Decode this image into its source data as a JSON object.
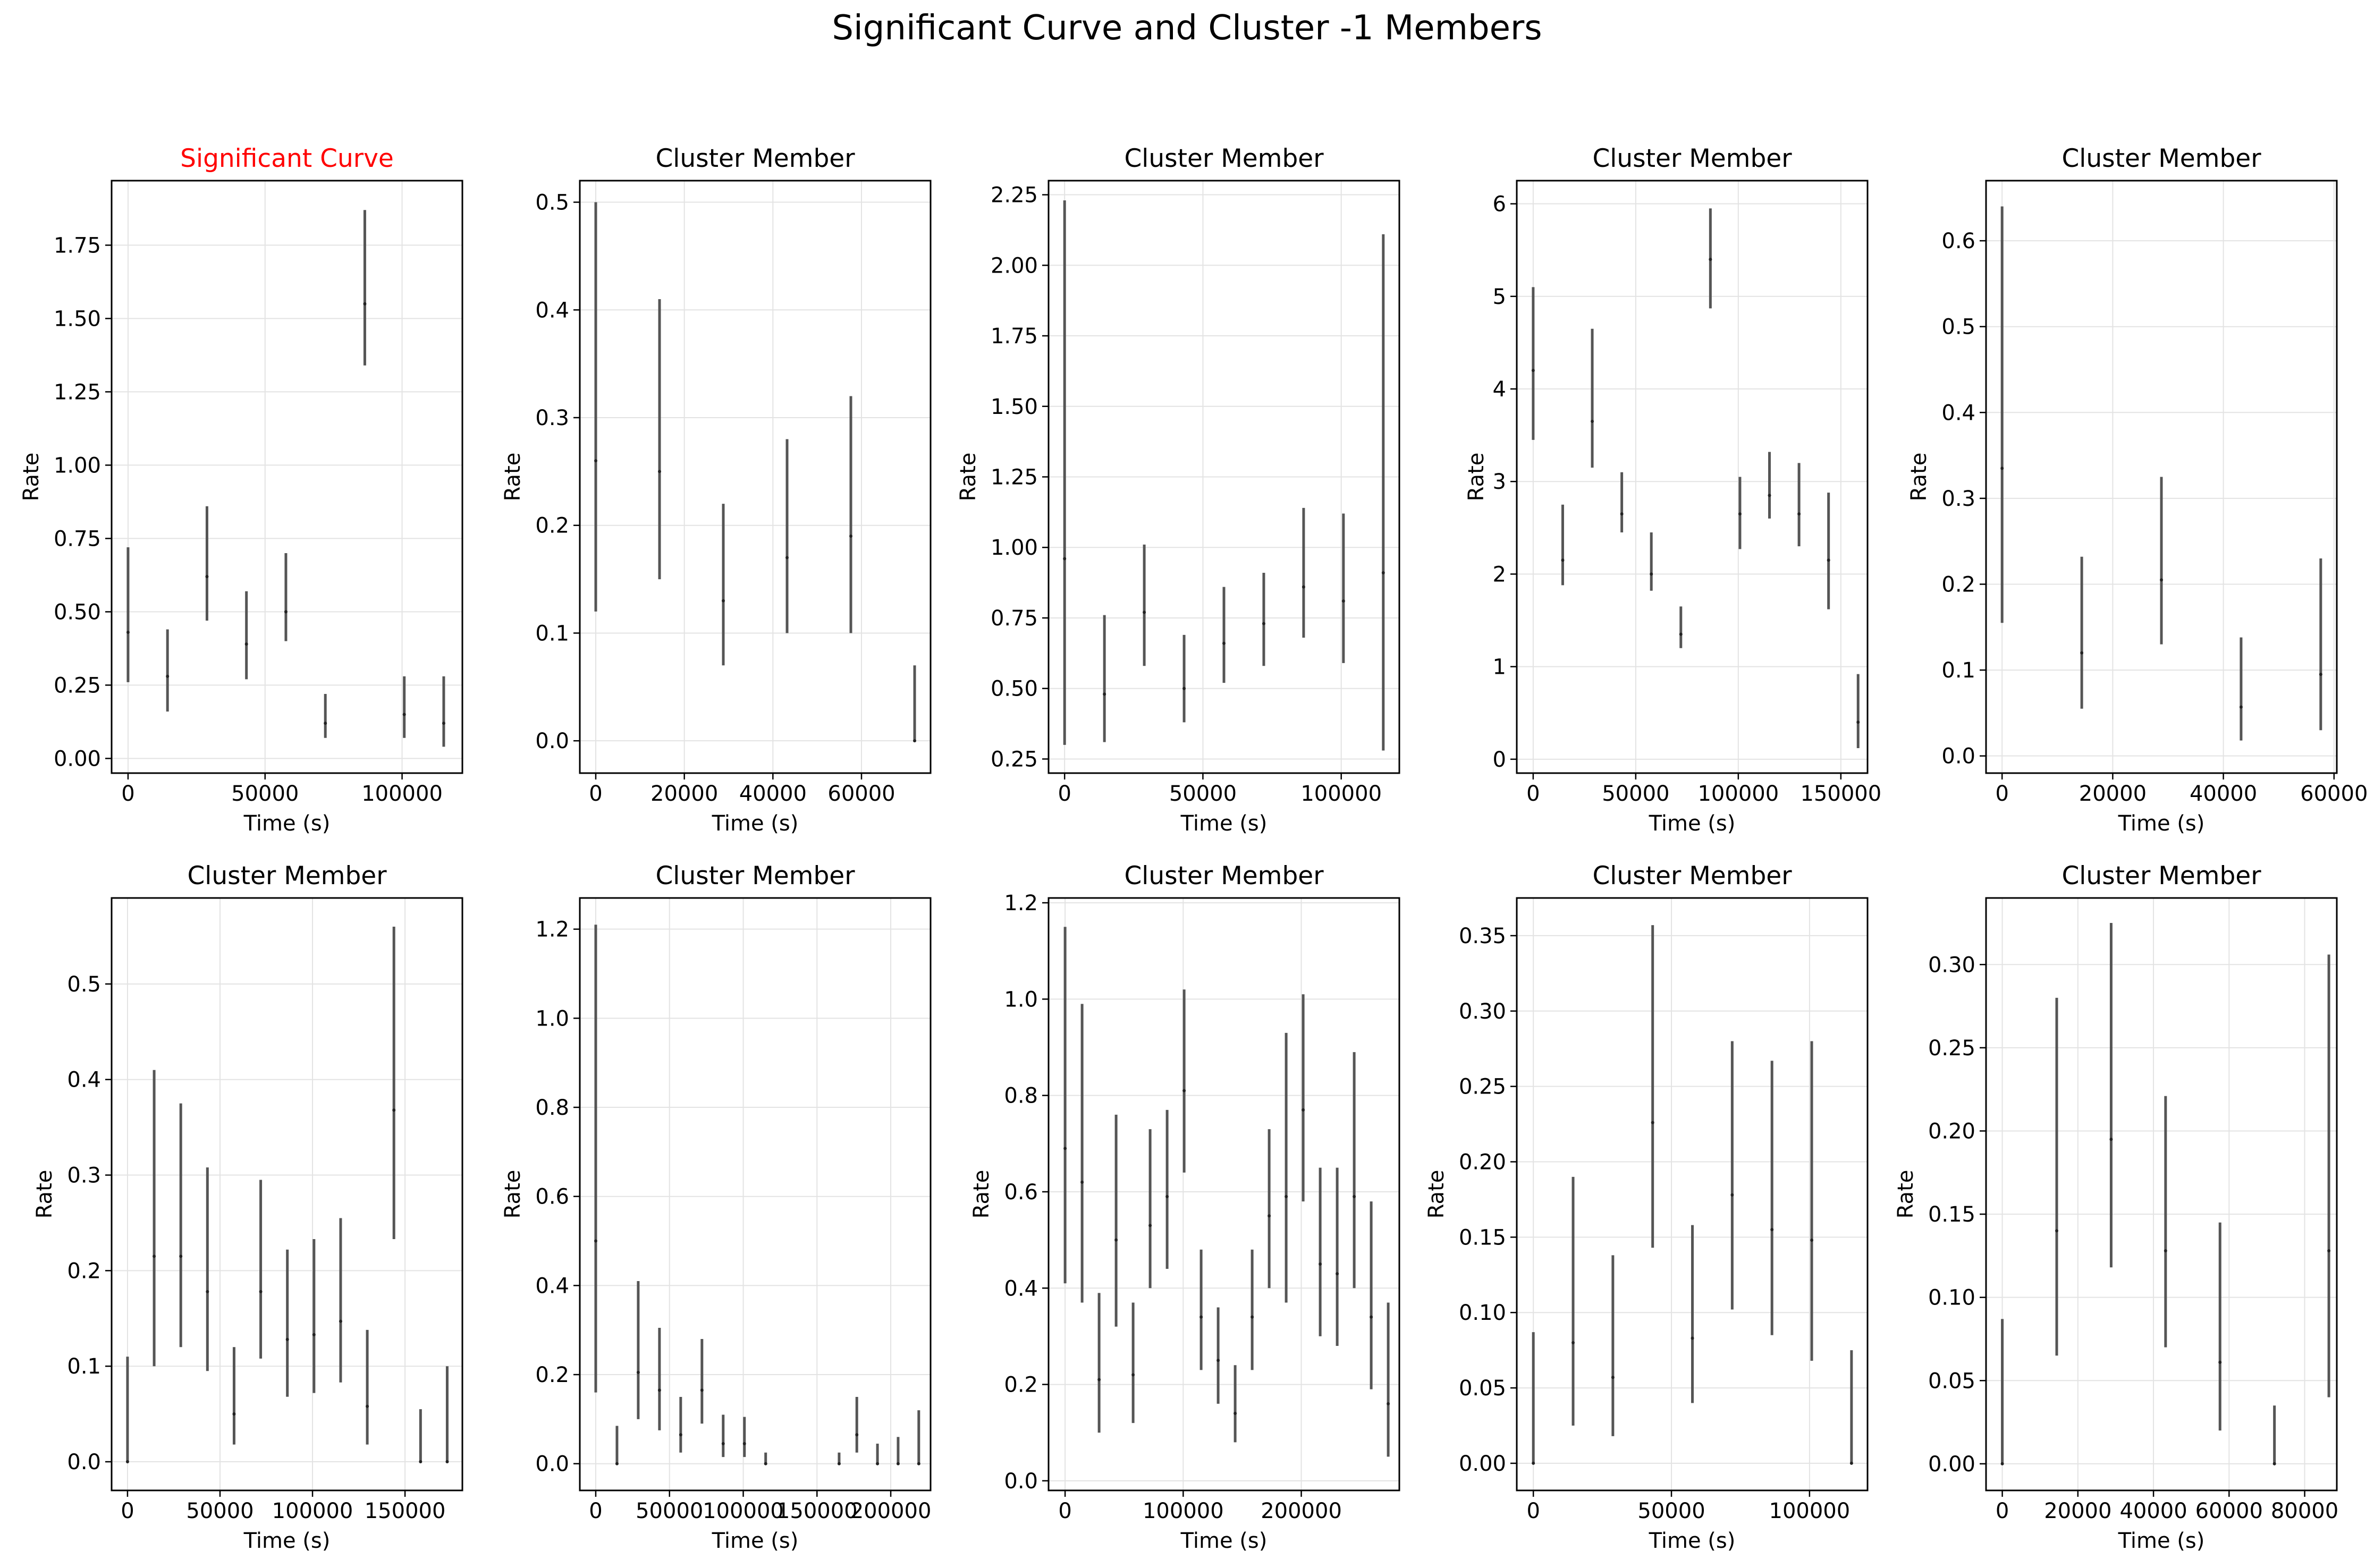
{
  "title": "Significant Curve and Cluster -1 Members",
  "colors": {
    "highlight_title": "#ff0000",
    "normal_title": "#000000",
    "errorbar": "#555555",
    "grid": "#e3e3e3"
  },
  "chart_data": [
    {
      "type": "scatter",
      "title": "Significant Curve",
      "title_color": "#ff0000",
      "xlabel": "Time (s)",
      "ylabel": "Rate",
      "xlim": [
        -6000,
        122000
      ],
      "ylim": [
        -0.05,
        1.97
      ],
      "xticks": [
        0,
        50000,
        100000
      ],
      "xtick_labels": [
        "0",
        "50000",
        "100000"
      ],
      "yticks": [
        0,
        0.25,
        0.5,
        0.75,
        1.0,
        1.25,
        1.5,
        1.75
      ],
      "ytick_labels": [
        "0.00",
        "0.25",
        "0.50",
        "0.75",
        "1.00",
        "1.25",
        "1.50",
        "1.75"
      ],
      "grid": true,
      "points": [
        {
          "x": 0,
          "y": 0.43,
          "lo": 0.26,
          "hi": 0.72
        },
        {
          "x": 14400,
          "y": 0.28,
          "lo": 0.16,
          "hi": 0.44
        },
        {
          "x": 28800,
          "y": 0.62,
          "lo": 0.47,
          "hi": 0.86
        },
        {
          "x": 43200,
          "y": 0.39,
          "lo": 0.27,
          "hi": 0.57
        },
        {
          "x": 57600,
          "y": 0.5,
          "lo": 0.4,
          "hi": 0.7
        },
        {
          "x": 72000,
          "y": 0.12,
          "lo": 0.07,
          "hi": 0.22
        },
        {
          "x": 86400,
          "y": 1.55,
          "lo": 1.34,
          "hi": 1.87
        },
        {
          "x": 100800,
          "y": 0.15,
          "lo": 0.07,
          "hi": 0.28
        },
        {
          "x": 115200,
          "y": 0.12,
          "lo": 0.04,
          "hi": 0.28
        }
      ]
    },
    {
      "type": "scatter",
      "title": "Cluster Member",
      "title_color": "#000000",
      "xlabel": "Time (s)",
      "ylabel": "Rate",
      "xlim": [
        -3600,
        75600
      ],
      "ylim": [
        -0.03,
        0.52
      ],
      "xticks": [
        0,
        20000,
        40000,
        60000
      ],
      "xtick_labels": [
        "0",
        "20000",
        "40000",
        "60000"
      ],
      "yticks": [
        0,
        0.1,
        0.2,
        0.3,
        0.4,
        0.5
      ],
      "ytick_labels": [
        "0.0",
        "0.1",
        "0.2",
        "0.3",
        "0.4",
        "0.5"
      ],
      "grid": true,
      "points": [
        {
          "x": 0,
          "y": 0.26,
          "lo": 0.12,
          "hi": 0.5
        },
        {
          "x": 14400,
          "y": 0.25,
          "lo": 0.15,
          "hi": 0.41
        },
        {
          "x": 28800,
          "y": 0.13,
          "lo": 0.07,
          "hi": 0.22
        },
        {
          "x": 43200,
          "y": 0.17,
          "lo": 0.1,
          "hi": 0.28
        },
        {
          "x": 57600,
          "y": 0.19,
          "lo": 0.1,
          "hi": 0.32
        },
        {
          "x": 72000,
          "y": 0.0,
          "lo": 0.0,
          "hi": 0.07
        }
      ]
    },
    {
      "type": "scatter",
      "title": "Cluster Member",
      "title_color": "#000000",
      "xlabel": "Time (s)",
      "ylabel": "Rate",
      "xlim": [
        -5800,
        121000
      ],
      "ylim": [
        0.2,
        2.3
      ],
      "xticks": [
        0,
        50000,
        100000
      ],
      "xtick_labels": [
        "0",
        "50000",
        "100000"
      ],
      "yticks": [
        0.25,
        0.5,
        0.75,
        1.0,
        1.25,
        1.5,
        1.75,
        2.0,
        2.25
      ],
      "ytick_labels": [
        "0.25",
        "0.50",
        "0.75",
        "1.00",
        "1.25",
        "1.50",
        "1.75",
        "2.00",
        "2.25"
      ],
      "grid": true,
      "points": [
        {
          "x": 0,
          "y": 0.96,
          "lo": 0.3,
          "hi": 2.23
        },
        {
          "x": 14400,
          "y": 0.48,
          "lo": 0.31,
          "hi": 0.76
        },
        {
          "x": 28800,
          "y": 0.77,
          "lo": 0.58,
          "hi": 1.01
        },
        {
          "x": 43200,
          "y": 0.5,
          "lo": 0.38,
          "hi": 0.69
        },
        {
          "x": 57600,
          "y": 0.66,
          "lo": 0.52,
          "hi": 0.86
        },
        {
          "x": 72000,
          "y": 0.73,
          "lo": 0.58,
          "hi": 0.91
        },
        {
          "x": 86400,
          "y": 0.86,
          "lo": 0.68,
          "hi": 1.14
        },
        {
          "x": 100800,
          "y": 0.81,
          "lo": 0.59,
          "hi": 1.12
        },
        {
          "x": 115200,
          "y": 0.91,
          "lo": 0.28,
          "hi": 2.11
        }
      ]
    },
    {
      "type": "scatter",
      "title": "Cluster Member",
      "title_color": "#000000",
      "xlabel": "Time (s)",
      "ylabel": "Rate",
      "xlim": [
        -8000,
        163000
      ],
      "ylim": [
        -0.15,
        6.25
      ],
      "xticks": [
        0,
        50000,
        100000,
        150000
      ],
      "xtick_labels": [
        "0",
        "50000",
        "100000",
        "150000"
      ],
      "yticks": [
        0,
        1,
        2,
        3,
        4,
        5,
        6
      ],
      "ytick_labels": [
        "0",
        "1",
        "2",
        "3",
        "4",
        "5",
        "6"
      ],
      "grid": true,
      "points": [
        {
          "x": 0,
          "y": 4.2,
          "lo": 3.45,
          "hi": 5.1
        },
        {
          "x": 14400,
          "y": 2.15,
          "lo": 1.88,
          "hi": 2.75
        },
        {
          "x": 28800,
          "y": 3.65,
          "lo": 3.15,
          "hi": 4.65
        },
        {
          "x": 43200,
          "y": 2.65,
          "lo": 2.45,
          "hi": 3.1
        },
        {
          "x": 57600,
          "y": 2.0,
          "lo": 1.82,
          "hi": 2.45
        },
        {
          "x": 72000,
          "y": 1.35,
          "lo": 1.2,
          "hi": 1.65
        },
        {
          "x": 86400,
          "y": 5.4,
          "lo": 4.87,
          "hi": 5.95
        },
        {
          "x": 100800,
          "y": 2.65,
          "lo": 2.27,
          "hi": 3.05
        },
        {
          "x": 115200,
          "y": 2.85,
          "lo": 2.6,
          "hi": 3.32
        },
        {
          "x": 129600,
          "y": 2.65,
          "lo": 2.3,
          "hi": 3.2
        },
        {
          "x": 144000,
          "y": 2.15,
          "lo": 1.62,
          "hi": 2.88
        },
        {
          "x": 158400,
          "y": 0.4,
          "lo": 0.12,
          "hi": 0.92
        }
      ]
    },
    {
      "type": "scatter",
      "title": "Cluster Member",
      "title_color": "#000000",
      "xlabel": "Time (s)",
      "ylabel": "Rate",
      "xlim": [
        -2900,
        60500
      ],
      "ylim": [
        -0.02,
        0.67
      ],
      "xticks": [
        0,
        20000,
        40000,
        60000
      ],
      "xtick_labels": [
        "0",
        "20000",
        "40000",
        "60000"
      ],
      "yticks": [
        0,
        0.1,
        0.2,
        0.3,
        0.4,
        0.5,
        0.6
      ],
      "ytick_labels": [
        "0.0",
        "0.1",
        "0.2",
        "0.3",
        "0.4",
        "0.5",
        "0.6"
      ],
      "grid": true,
      "points": [
        {
          "x": 0,
          "y": 0.335,
          "lo": 0.155,
          "hi": 0.64
        },
        {
          "x": 14400,
          "y": 0.12,
          "lo": 0.055,
          "hi": 0.232
        },
        {
          "x": 28800,
          "y": 0.205,
          "lo": 0.13,
          "hi": 0.325
        },
        {
          "x": 43200,
          "y": 0.057,
          "lo": 0.018,
          "hi": 0.138
        },
        {
          "x": 57600,
          "y": 0.095,
          "lo": 0.03,
          "hi": 0.23
        }
      ]
    },
    {
      "type": "scatter",
      "title": "Cluster Member",
      "title_color": "#000000",
      "xlabel": "Time (s)",
      "ylabel": "Rate",
      "xlim": [
        -8600,
        181000
      ],
      "ylim": [
        -0.03,
        0.59
      ],
      "xticks": [
        0,
        50000,
        100000,
        150000
      ],
      "xtick_labels": [
        "0",
        "50000",
        "100000",
        "150000"
      ],
      "yticks": [
        0,
        0.1,
        0.2,
        0.3,
        0.4,
        0.5
      ],
      "ytick_labels": [
        "0.0",
        "0.1",
        "0.2",
        "0.3",
        "0.4",
        "0.5"
      ],
      "grid": true,
      "points": [
        {
          "x": 0,
          "y": 0.0,
          "lo": 0.0,
          "hi": 0.11
        },
        {
          "x": 14400,
          "y": 0.215,
          "lo": 0.1,
          "hi": 0.41
        },
        {
          "x": 28800,
          "y": 0.215,
          "lo": 0.12,
          "hi": 0.375
        },
        {
          "x": 43200,
          "y": 0.178,
          "lo": 0.095,
          "hi": 0.308
        },
        {
          "x": 57600,
          "y": 0.05,
          "lo": 0.018,
          "hi": 0.12
        },
        {
          "x": 72000,
          "y": 0.178,
          "lo": 0.108,
          "hi": 0.295
        },
        {
          "x": 86400,
          "y": 0.128,
          "lo": 0.068,
          "hi": 0.222
        },
        {
          "x": 100800,
          "y": 0.133,
          "lo": 0.072,
          "hi": 0.233
        },
        {
          "x": 115200,
          "y": 0.147,
          "lo": 0.083,
          "hi": 0.255
        },
        {
          "x": 129600,
          "y": 0.058,
          "lo": 0.018,
          "hi": 0.138
        },
        {
          "x": 144000,
          "y": 0.368,
          "lo": 0.233,
          "hi": 0.56
        },
        {
          "x": 158400,
          "y": 0.0,
          "lo": 0.0,
          "hi": 0.055
        },
        {
          "x": 172800,
          "y": 0.0,
          "lo": 0.0,
          "hi": 0.1
        }
      ]
    },
    {
      "type": "scatter",
      "title": "Cluster Member",
      "title_color": "#000000",
      "xlabel": "Time (s)",
      "ylabel": "Rate",
      "xlim": [
        -10800,
        227000
      ],
      "ylim": [
        -0.06,
        1.27
      ],
      "xticks": [
        0,
        50000,
        100000,
        150000,
        200000
      ],
      "xtick_labels": [
        "0",
        "50000",
        "100000",
        "150000",
        "200000"
      ],
      "yticks": [
        0,
        0.2,
        0.4,
        0.6,
        0.8,
        1.0,
        1.2
      ],
      "ytick_labels": [
        "0.0",
        "0.2",
        "0.4",
        "0.6",
        "0.8",
        "1.0",
        "1.2"
      ],
      "grid": true,
      "points": [
        {
          "x": 0,
          "y": 0.5,
          "lo": 0.16,
          "hi": 1.21
        },
        {
          "x": 14400,
          "y": 0.0,
          "lo": 0.0,
          "hi": 0.085
        },
        {
          "x": 28800,
          "y": 0.205,
          "lo": 0.1,
          "hi": 0.41
        },
        {
          "x": 43200,
          "y": 0.165,
          "lo": 0.075,
          "hi": 0.305
        },
        {
          "x": 57600,
          "y": 0.065,
          "lo": 0.025,
          "hi": 0.15
        },
        {
          "x": 72000,
          "y": 0.165,
          "lo": 0.09,
          "hi": 0.28
        },
        {
          "x": 86400,
          "y": 0.045,
          "lo": 0.015,
          "hi": 0.11
        },
        {
          "x": 100800,
          "y": 0.045,
          "lo": 0.015,
          "hi": 0.105
        },
        {
          "x": 115200,
          "y": 0.0,
          "lo": 0.0,
          "hi": 0.025
        },
        {
          "x": 165000,
          "y": 0.0,
          "lo": 0.0,
          "hi": 0.025
        },
        {
          "x": 177000,
          "y": 0.065,
          "lo": 0.025,
          "hi": 0.15
        },
        {
          "x": 191000,
          "y": 0.0,
          "lo": 0.0,
          "hi": 0.045
        },
        {
          "x": 205000,
          "y": 0.0,
          "lo": 0.0,
          "hi": 0.06
        },
        {
          "x": 219000,
          "y": 0.0,
          "lo": 0.0,
          "hi": 0.12
        }
      ]
    },
    {
      "type": "scatter",
      "title": "Cluster Member",
      "title_color": "#000000",
      "xlabel": "Time (s)",
      "ylabel": "Rate",
      "xlim": [
        -14000,
        283000
      ],
      "ylim": [
        -0.02,
        1.21
      ],
      "xticks": [
        0,
        100000,
        200000
      ],
      "xtick_labels": [
        "0",
        "100000",
        "200000"
      ],
      "yticks": [
        0,
        0.2,
        0.4,
        0.6,
        0.8,
        1.0,
        1.2
      ],
      "ytick_labels": [
        "0.0",
        "0.2",
        "0.4",
        "0.6",
        "0.8",
        "1.0",
        "1.2"
      ],
      "grid": true,
      "points": [
        {
          "x": 0,
          "y": 0.69,
          "lo": 0.41,
          "hi": 1.15
        },
        {
          "x": 14400,
          "y": 0.62,
          "lo": 0.37,
          "hi": 0.99
        },
        {
          "x": 28800,
          "y": 0.21,
          "lo": 0.1,
          "hi": 0.39
        },
        {
          "x": 43200,
          "y": 0.5,
          "lo": 0.32,
          "hi": 0.76
        },
        {
          "x": 57600,
          "y": 0.22,
          "lo": 0.12,
          "hi": 0.37
        },
        {
          "x": 72000,
          "y": 0.53,
          "lo": 0.4,
          "hi": 0.73
        },
        {
          "x": 86400,
          "y": 0.59,
          "lo": 0.44,
          "hi": 0.77
        },
        {
          "x": 100800,
          "y": 0.81,
          "lo": 0.64,
          "hi": 1.02
        },
        {
          "x": 115200,
          "y": 0.34,
          "lo": 0.23,
          "hi": 0.48
        },
        {
          "x": 129600,
          "y": 0.25,
          "lo": 0.16,
          "hi": 0.36
        },
        {
          "x": 144000,
          "y": 0.14,
          "lo": 0.08,
          "hi": 0.24
        },
        {
          "x": 158400,
          "y": 0.34,
          "lo": 0.23,
          "hi": 0.48
        },
        {
          "x": 172800,
          "y": 0.55,
          "lo": 0.4,
          "hi": 0.73
        },
        {
          "x": 187200,
          "y": 0.59,
          "lo": 0.37,
          "hi": 0.93
        },
        {
          "x": 201600,
          "y": 0.77,
          "lo": 0.58,
          "hi": 1.01
        },
        {
          "x": 216000,
          "y": 0.45,
          "lo": 0.3,
          "hi": 0.65
        },
        {
          "x": 230400,
          "y": 0.43,
          "lo": 0.28,
          "hi": 0.65
        },
        {
          "x": 244800,
          "y": 0.59,
          "lo": 0.4,
          "hi": 0.89
        },
        {
          "x": 259200,
          "y": 0.34,
          "lo": 0.19,
          "hi": 0.58
        },
        {
          "x": 273600,
          "y": 0.16,
          "lo": 0.05,
          "hi": 0.37
        }
      ]
    },
    {
      "type": "scatter",
      "title": "Cluster Member",
      "title_color": "#000000",
      "xlabel": "Time (s)",
      "ylabel": "Rate",
      "xlim": [
        -6000,
        121000
      ],
      "ylim": [
        -0.018,
        0.375
      ],
      "xticks": [
        0,
        50000,
        100000
      ],
      "xtick_labels": [
        "0",
        "50000",
        "100000"
      ],
      "yticks": [
        0,
        0.05,
        0.1,
        0.15,
        0.2,
        0.25,
        0.3,
        0.35
      ],
      "ytick_labels": [
        "0.00",
        "0.05",
        "0.10",
        "0.15",
        "0.20",
        "0.25",
        "0.30",
        "0.35"
      ],
      "grid": true,
      "points": [
        {
          "x": 0,
          "y": 0.0,
          "lo": 0.0,
          "hi": 0.087
        },
        {
          "x": 14400,
          "y": 0.08,
          "lo": 0.025,
          "hi": 0.19
        },
        {
          "x": 28800,
          "y": 0.057,
          "lo": 0.018,
          "hi": 0.138
        },
        {
          "x": 43200,
          "y": 0.226,
          "lo": 0.143,
          "hi": 0.357
        },
        {
          "x": 57600,
          "y": 0.083,
          "lo": 0.04,
          "hi": 0.158
        },
        {
          "x": 72000,
          "y": 0.178,
          "lo": 0.102,
          "hi": 0.28
        },
        {
          "x": 86400,
          "y": 0.155,
          "lo": 0.085,
          "hi": 0.267
        },
        {
          "x": 100800,
          "y": 0.148,
          "lo": 0.068,
          "hi": 0.28
        },
        {
          "x": 115200,
          "y": 0.0,
          "lo": 0.0,
          "hi": 0.075
        }
      ]
    },
    {
      "type": "scatter",
      "title": "Cluster Member",
      "title_color": "#000000",
      "xlabel": "Time (s)",
      "ylabel": "Rate",
      "xlim": [
        -4300,
        88500
      ],
      "ylim": [
        -0.016,
        0.34
      ],
      "xticks": [
        0,
        20000,
        40000,
        60000,
        80000
      ],
      "xtick_labels": [
        "0",
        "20000",
        "40000",
        "60000",
        "80000"
      ],
      "yticks": [
        0,
        0.05,
        0.1,
        0.15,
        0.2,
        0.25,
        0.3
      ],
      "ytick_labels": [
        "0.00",
        "0.05",
        "0.10",
        "0.15",
        "0.20",
        "0.25",
        "0.30"
      ],
      "grid": true,
      "points": [
        {
          "x": 0,
          "y": 0.0,
          "lo": 0.0,
          "hi": 0.087
        },
        {
          "x": 14400,
          "y": 0.14,
          "lo": 0.065,
          "hi": 0.28
        },
        {
          "x": 28800,
          "y": 0.195,
          "lo": 0.118,
          "hi": 0.325
        },
        {
          "x": 43200,
          "y": 0.128,
          "lo": 0.07,
          "hi": 0.221
        },
        {
          "x": 57600,
          "y": 0.061,
          "lo": 0.02,
          "hi": 0.145
        },
        {
          "x": 72000,
          "y": 0.0,
          "lo": 0.0,
          "hi": 0.035
        },
        {
          "x": 86400,
          "y": 0.128,
          "lo": 0.04,
          "hi": 0.306
        }
      ]
    }
  ]
}
